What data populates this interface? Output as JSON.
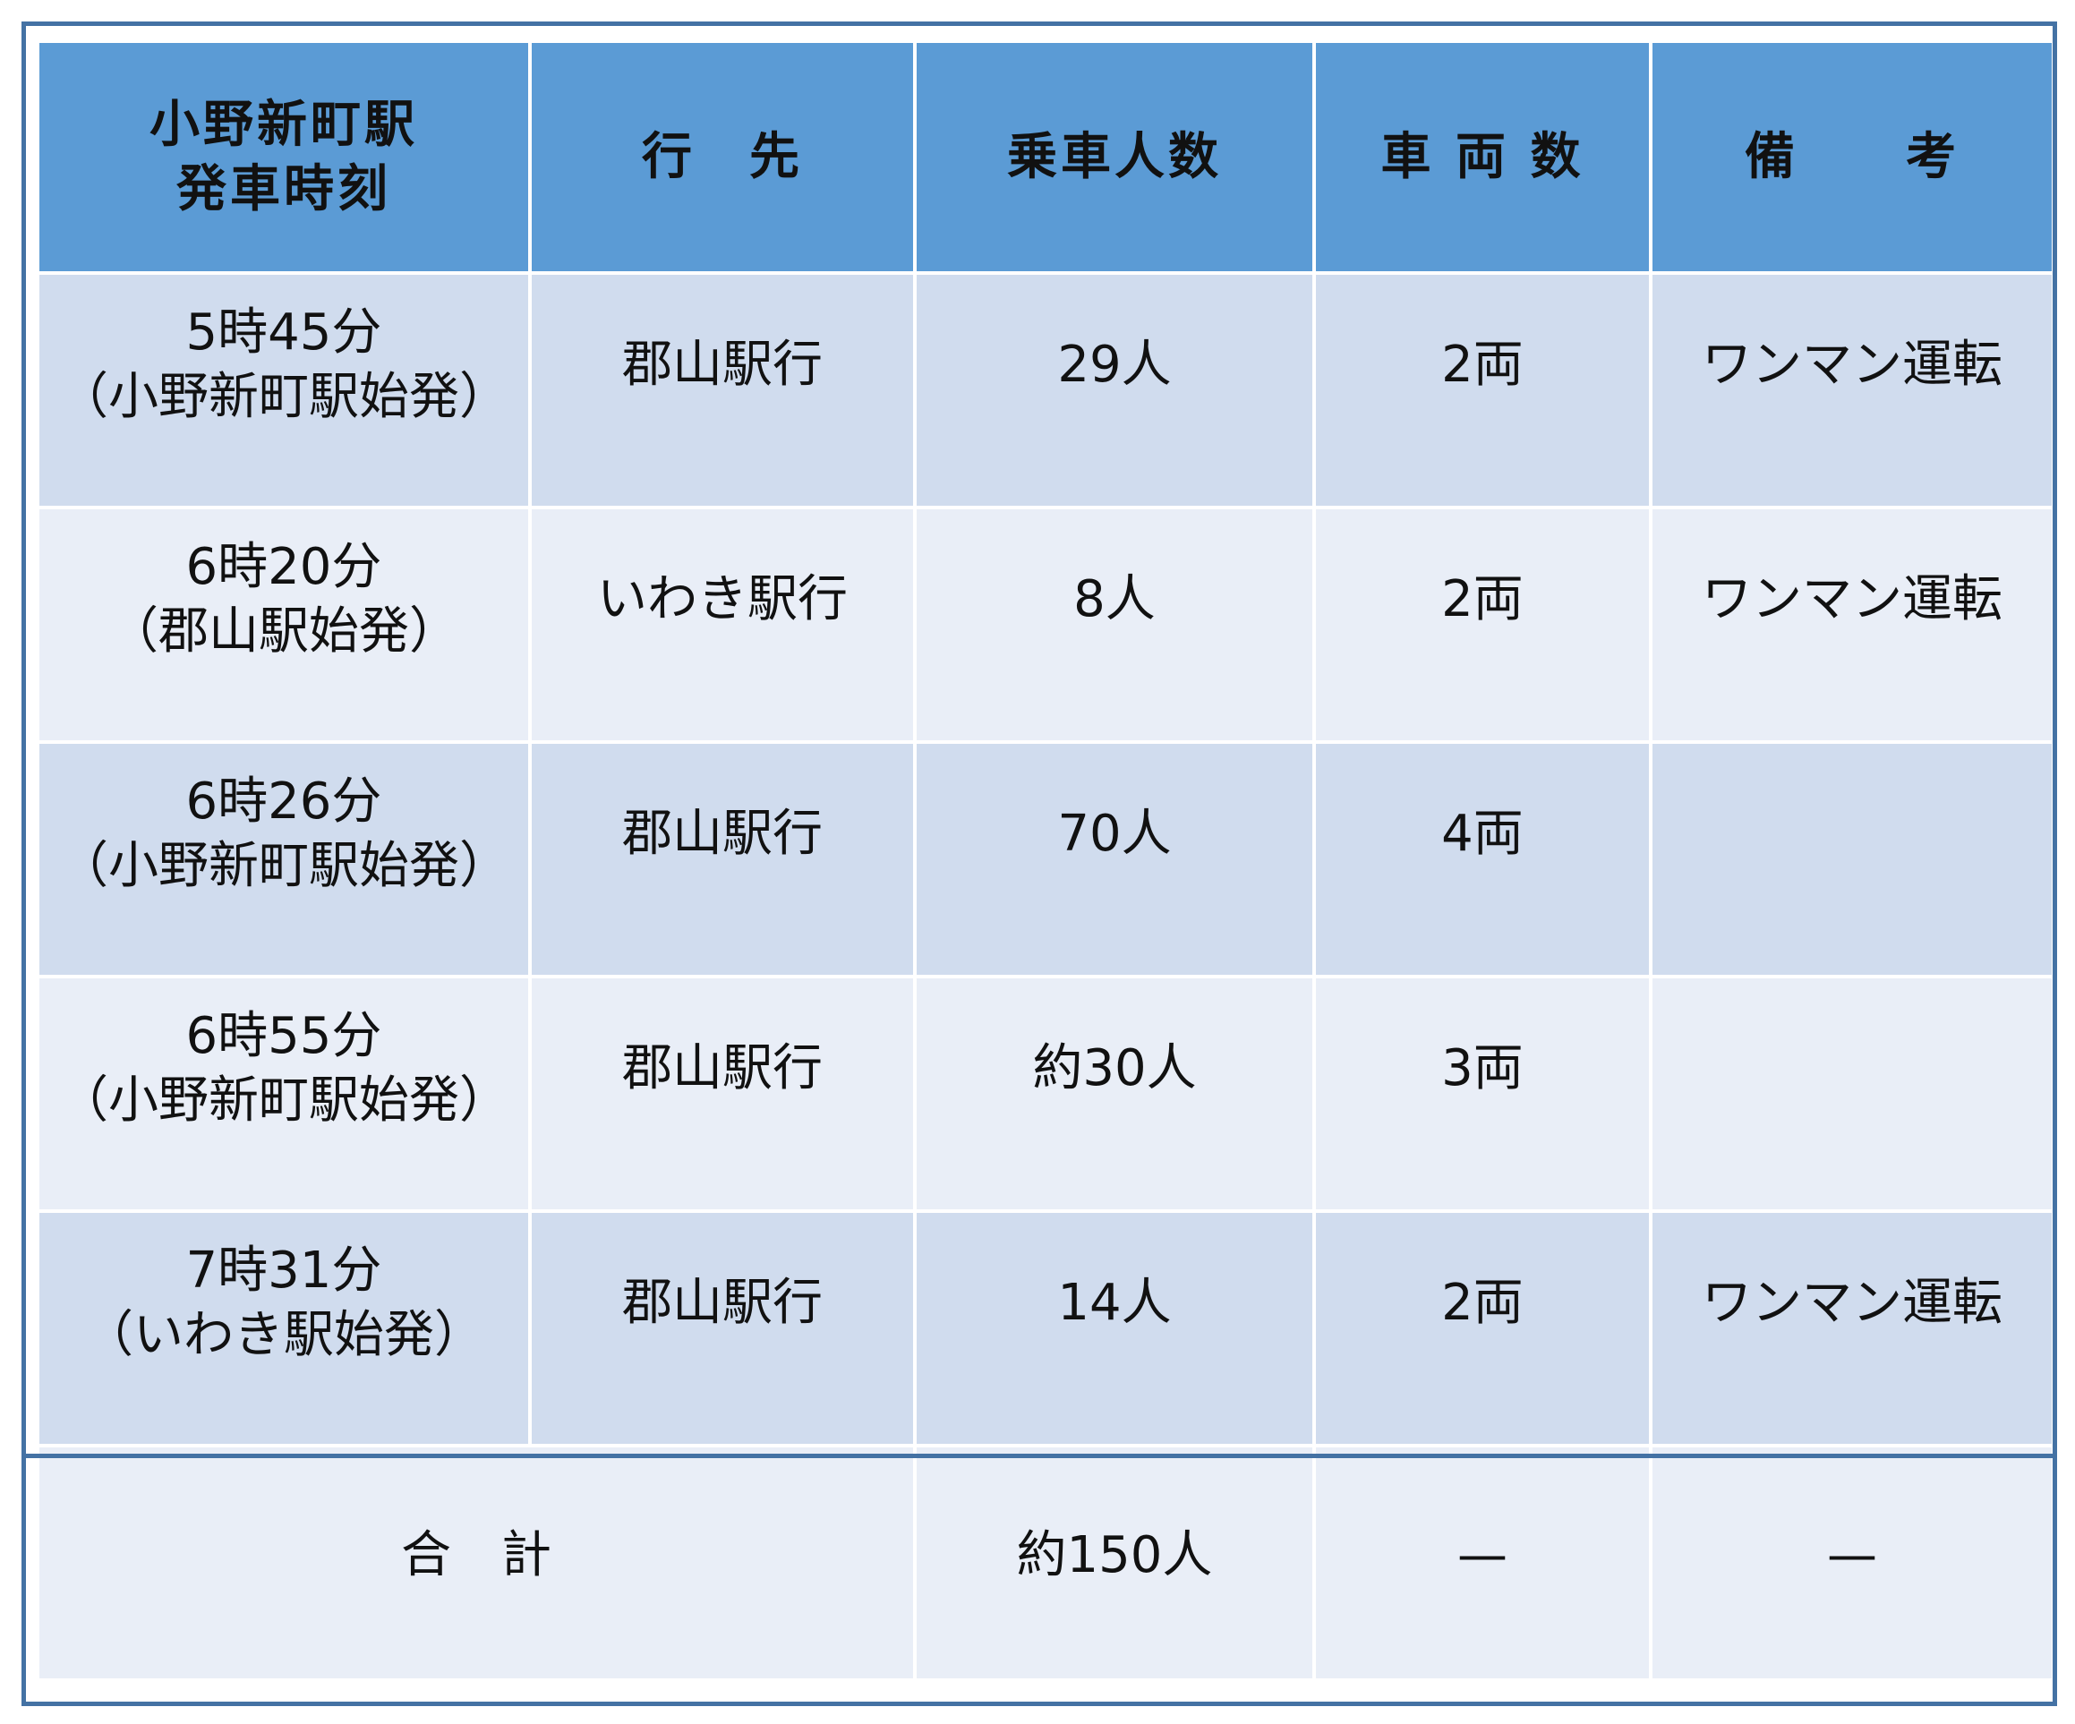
{
  "table": {
    "headers": {
      "time_line1": "小野新町駅",
      "time_line2": "発車時刻",
      "destination": "行　先",
      "passengers": "乗車人数",
      "cars": "車 両 数",
      "remarks": "備　　考"
    },
    "rows": [
      {
        "time": "5時45分",
        "origin": "（小野新町駅始発）",
        "destination": "郡山駅行",
        "passengers": "29人",
        "cars": "2両",
        "remarks": "ワンマン運転"
      },
      {
        "time": "6時20分",
        "origin": "（郡山駅始発）",
        "destination": "いわき駅行",
        "passengers": "8人",
        "cars": "2両",
        "remarks": "ワンマン運転"
      },
      {
        "time": "6時26分",
        "origin": "（小野新町駅始発）",
        "destination": "郡山駅行",
        "passengers": "70人",
        "cars": "4両",
        "remarks": ""
      },
      {
        "time": "6時55分",
        "origin": "（小野新町駅始発）",
        "destination": "郡山駅行",
        "passengers": "約30人",
        "cars": "3両",
        "remarks": ""
      },
      {
        "time": "7時31分",
        "origin": "（いわき駅始発）",
        "destination": "郡山駅行",
        "passengers": "14人",
        "cars": "2両",
        "remarks": "ワンマン運転"
      }
    ],
    "total": {
      "label": "合　計",
      "passengers": "約150人",
      "cars": "—",
      "remarks": "—"
    }
  }
}
